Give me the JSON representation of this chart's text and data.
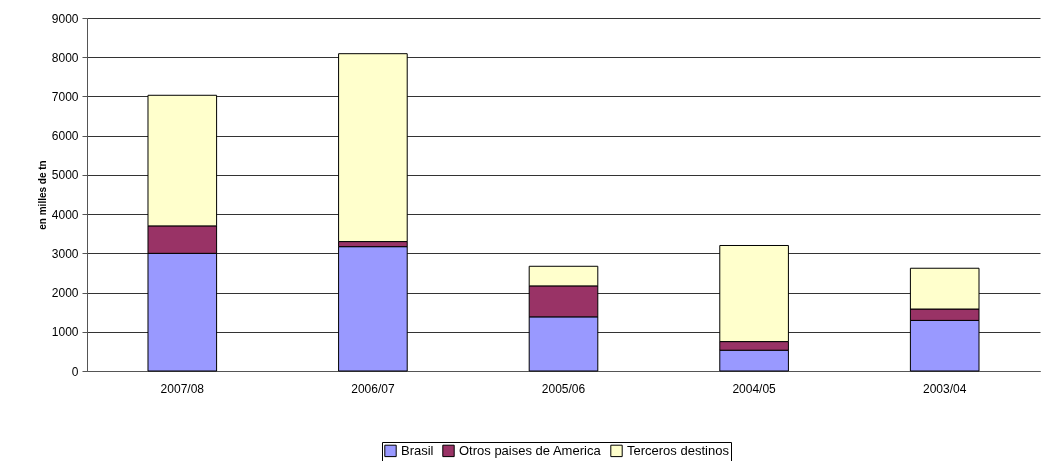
{
  "chart_data": {
    "type": "bar",
    "stacked": true,
    "ylabel": "en milles de tn",
    "categories": [
      "2007/08",
      "2006/07",
      "2005/06",
      "2004/05",
      "2003/04"
    ],
    "series": [
      {
        "name": "Brasil",
        "color": "#9999ff",
        "values": [
          3000,
          3170,
          1380,
          530,
          1290
        ]
      },
      {
        "name": "Otros paises de America",
        "color": "#993366",
        "values": [
          700,
          130,
          790,
          220,
          290
        ]
      },
      {
        "name": "Terceros destinos",
        "color": "#ffffcc",
        "values": [
          3330,
          4790,
          500,
          2450,
          1040
        ]
      }
    ],
    "ylim": [
      0,
      9000
    ],
    "yticks": [
      0,
      1000,
      2000,
      3000,
      4000,
      5000,
      6000,
      7000,
      8000,
      9000
    ],
    "grid": "y",
    "legend": "bottom"
  }
}
